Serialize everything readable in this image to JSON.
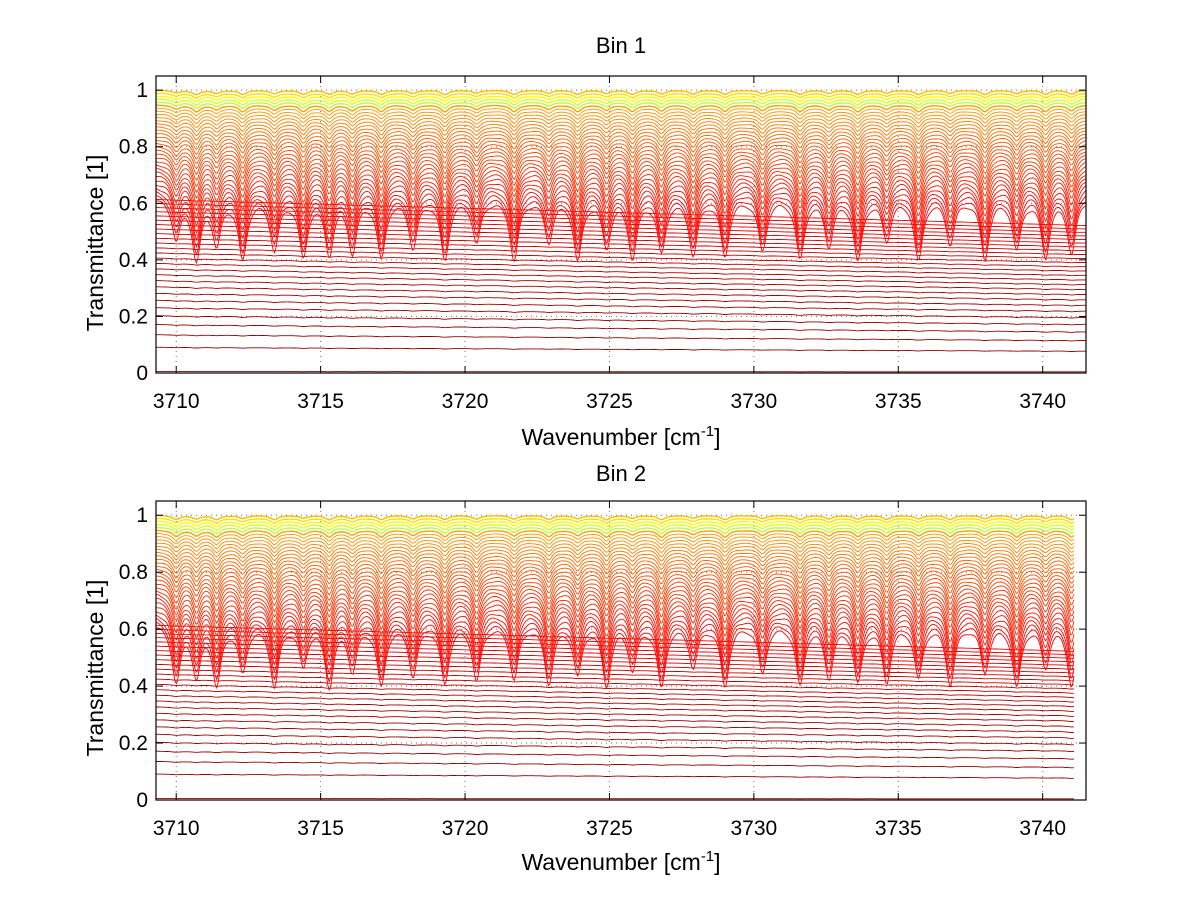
{
  "chart_data": [
    {
      "type": "line",
      "title": "Bin 1",
      "xlabel": "Wavenumber [cm",
      "xlabel_sup": "-1",
      "xlabel_end": "]",
      "ylabel": "Transmittance [1]",
      "xlim": [
        3709.3,
        3741.5
      ],
      "ylim": [
        0,
        1.05
      ],
      "xticks": [
        3710,
        3715,
        3720,
        3725,
        3730,
        3735,
        3740
      ],
      "xtick_labels": [
        "3710",
        "3715",
        "3720",
        "3725",
        "3730",
        "3735",
        "3740"
      ],
      "yticks": [
        0,
        0.2,
        0.4,
        0.6,
        0.8,
        1
      ],
      "ytick_labels": [
        "0",
        "0.2",
        "0.4",
        "0.6",
        "0.8",
        "1"
      ],
      "grid": true,
      "colormap": "jet",
      "series_count": 60,
      "absorption_lines": [
        3710.0,
        3710.7,
        3711.4,
        3712.3,
        3713.4,
        3714.4,
        3715.3,
        3716.1,
        3717.1,
        3718.2,
        3719.3,
        3720.4,
        3721.7,
        3722.9,
        3723.9,
        3724.9,
        3725.8,
        3726.8,
        3727.9,
        3729.0,
        3730.3,
        3731.6,
        3732.6,
        3733.6,
        3734.6,
        3735.7,
        3736.8,
        3738.0,
        3739.1,
        3740.1,
        3741.0
      ]
    },
    {
      "type": "line",
      "title": "Bin 2",
      "xlabel": "Wavenumber [cm",
      "xlabel_sup": "-1",
      "xlabel_end": "]",
      "ylabel": "Transmittance [1]",
      "xlim": [
        3709.3,
        3741.5
      ],
      "ylim": [
        0,
        1.05
      ],
      "xticks": [
        3710,
        3715,
        3720,
        3725,
        3730,
        3735,
        3740
      ],
      "xtick_labels": [
        "3710",
        "3715",
        "3720",
        "3725",
        "3730",
        "3735",
        "3740"
      ],
      "yticks": [
        0,
        0.2,
        0.4,
        0.6,
        0.8,
        1
      ],
      "ytick_labels": [
        "0",
        "0.2",
        "0.4",
        "0.6",
        "0.8",
        "1"
      ],
      "grid": true,
      "colormap": "jet",
      "series_count": 60,
      "absorption_lines": [
        3710.0,
        3710.7,
        3711.4,
        3712.3,
        3713.4,
        3714.4,
        3715.3,
        3716.1,
        3717.1,
        3718.2,
        3719.3,
        3720.4,
        3721.7,
        3722.9,
        3723.9,
        3724.9,
        3725.8,
        3726.8,
        3727.9,
        3729.0,
        3730.3,
        3731.6,
        3732.6,
        3733.6,
        3734.6,
        3735.7,
        3736.8,
        3738.0,
        3739.1,
        3740.1,
        3741.0
      ]
    }
  ]
}
